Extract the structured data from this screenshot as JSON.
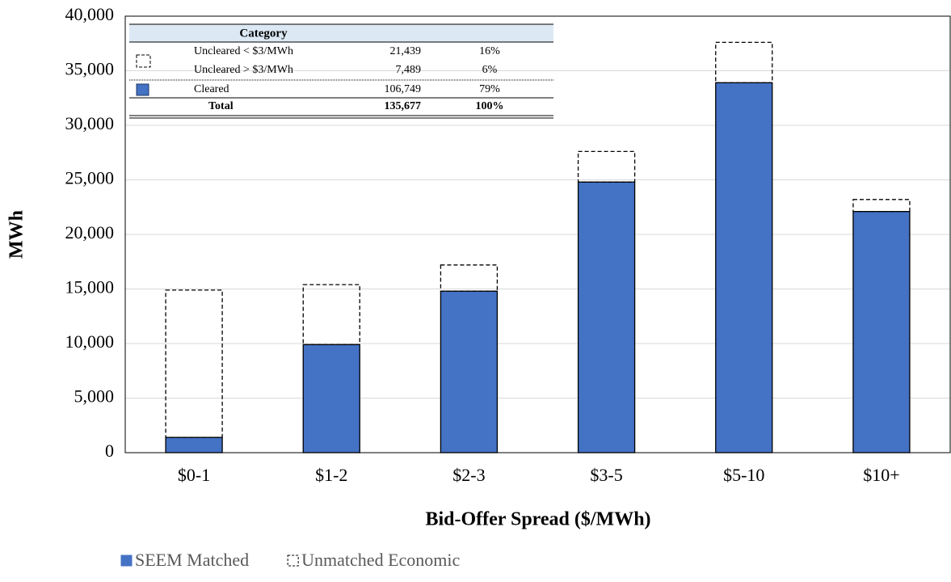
{
  "chart_data": {
    "type": "stacked_bar",
    "x_label": "Bid-Offer Spread ($/MWh)",
    "y_label": "MWh",
    "categories": [
      "$0-1",
      "$1-2",
      "$2-3",
      "$3-5",
      "$5-10",
      "$10+"
    ],
    "series": [
      {
        "name": "SEEM Matched",
        "color": "#4472c4",
        "values": [
          1400,
          9900,
          14800,
          24800,
          33900,
          22100
        ]
      },
      {
        "name": "Unmatched Economic",
        "color": "none",
        "values": [
          13500,
          5500,
          2400,
          2800,
          3700,
          1100
        ]
      }
    ],
    "ylim": [
      0,
      40000
    ],
    "yticks": [
      0,
      {
        "value": 5000,
        "label": "5,000"
      },
      {
        "value": 10000,
        "label": "10,000"
      },
      {
        "value": 15000,
        "label": "15,000"
      },
      {
        "value": 20000,
        "label": "20,000"
      },
      {
        "value": 25000,
        "label": "25,000"
      },
      {
        "value": 30000,
        "label": "30,000"
      },
      {
        "value": 35000,
        "label": "35,000"
      },
      {
        "value": 40000,
        "label": "40,000"
      }
    ],
    "grid": true,
    "table": {
      "header": "Category",
      "rows": [
        [
          "Uncleared < $3/MWh",
          "21,439",
          "16%"
        ],
        [
          "Uncleared > $3/MWh",
          "7,489",
          "6%"
        ],
        [
          "Cleared",
          "106,749",
          "79%"
        ],
        [
          "Total",
          "135,677",
          "100%"
        ]
      ]
    }
  }
}
